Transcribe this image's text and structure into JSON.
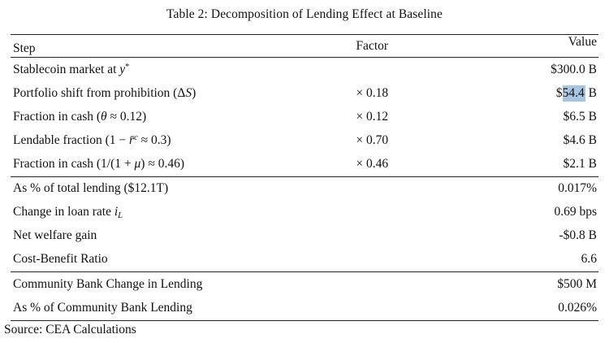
{
  "title": "Table 2: Decomposition of Lending Effect at Baseline",
  "header": {
    "step": "Step",
    "factor": "Factor",
    "value": "Value"
  },
  "highlight": {
    "color": "#a8c6e2",
    "text": "54.4"
  },
  "sections": [
    {
      "name": "decomposition-steps",
      "rows": [
        {
          "step_html": "Stablecoin market at <i>y</i><sup>*</sup>",
          "step_text": "Stablecoin market at y*",
          "factor": "",
          "value": "$300.0 B"
        },
        {
          "step_html": "Portfolio shift from prohibition (Δ<i>S</i>)",
          "step_text": "Portfolio shift from prohibition (ΔS)",
          "factor": "× 0.18",
          "value_pre": "$",
          "value_hl": "54.4",
          "value_post": " B"
        },
        {
          "step_html": "Fraction in cash (<i>θ</i> ≈ 0.12)",
          "step_text": "Fraction in cash (θ ≈ 0.12)",
          "factor": "× 0.12",
          "value": "$6.5 B"
        },
        {
          "step_html": "Lendable fraction (1 − <i>r̄<sup>c</sup></i> ≈ 0.3)",
          "step_text": "Lendable fraction (1 − r̄ᶜ ≈ 0.3)",
          "factor": "× 0.70",
          "value": "$4.6 B"
        },
        {
          "step_html": "Fraction in cash (1/(1 + <i>μ</i>) ≈ 0.46)",
          "step_text": "Fraction in cash (1/(1 + μ) ≈ 0.46)",
          "factor": "× 0.46",
          "value": "$2.1 B"
        }
      ]
    },
    {
      "name": "aggregate-effects",
      "rows": [
        {
          "step_html": "As % of total lending ($12.1T)",
          "step_text": "As % of total lending ($12.1T)",
          "factor": "",
          "value": "0.017%"
        },
        {
          "step_html": "Change in loan rate <i>i<sub>L</sub></i>",
          "step_text": "Change in loan rate iL",
          "factor": "",
          "value": "0.69 bps"
        },
        {
          "step_html": "Net welfare gain",
          "step_text": "Net welfare gain",
          "factor": "",
          "value": "-$0.8 B"
        },
        {
          "step_html": "Cost-Benefit Ratio",
          "step_text": "Cost-Benefit Ratio",
          "factor": "",
          "value": "6.6"
        }
      ]
    },
    {
      "name": "community-banks",
      "rows": [
        {
          "step_html": "Community Bank Change in Lending",
          "step_text": "Community Bank Change in Lending",
          "factor": "",
          "value": "$500 M"
        },
        {
          "step_html": "As % of Community Bank Lending",
          "step_text": "As % of Community Bank Lending",
          "factor": "",
          "value": "0.026%"
        }
      ]
    }
  ],
  "source": "Source: CEA Calculations"
}
